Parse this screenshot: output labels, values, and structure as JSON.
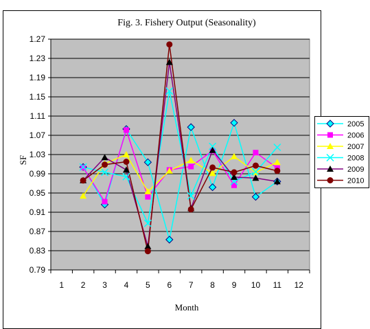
{
  "chart_data": {
    "type": "line",
    "title": "Fig. 3. Fishery Output (Seasonality)",
    "xlabel": "Month",
    "ylabel": "SF",
    "x": [
      1,
      2,
      3,
      4,
      5,
      6,
      7,
      8,
      9,
      10,
      11,
      12
    ],
    "xticks": [
      "1",
      "2",
      "3",
      "4",
      "5",
      "6",
      "7",
      "8",
      "9",
      "10",
      "11",
      "12"
    ],
    "ylim": [
      0.79,
      1.27
    ],
    "yticks": [
      "0.79",
      "0.83",
      "0.87",
      "0.91",
      "0.95",
      "0.99",
      "1.03",
      "1.07",
      "1.11",
      "1.15",
      "1.19",
      "1.23",
      "1.27"
    ],
    "grid": true,
    "plot_background": "#c0c0c0",
    "legend_position": "right",
    "series": [
      {
        "name": "2005",
        "color": "#00ffff",
        "marker": "diamond",
        "points": [
          [
            2,
            1.004
          ],
          [
            3,
            0.926
          ],
          [
            4,
            1.083
          ],
          [
            5,
            1.014
          ],
          [
            6,
            0.853
          ],
          [
            7,
            1.087
          ],
          [
            8,
            0.962
          ],
          [
            9,
            1.096
          ],
          [
            10,
            0.942
          ],
          [
            11,
            0.974
          ]
        ]
      },
      {
        "name": "2006",
        "color": "#ff00ff",
        "marker": "square",
        "points": [
          [
            2,
            1.003
          ],
          [
            3,
            0.932
          ],
          [
            4,
            1.081
          ],
          [
            5,
            0.942
          ],
          [
            6,
            0.998
          ],
          [
            7,
            1.005
          ],
          [
            8,
            1.038
          ],
          [
            9,
            0.966
          ],
          [
            10,
            1.034
          ],
          [
            11,
            1.002
          ]
        ]
      },
      {
        "name": "2007",
        "color": "#ffff00",
        "marker": "triangle",
        "points": [
          [
            2,
            0.944
          ],
          [
            3,
            1.011
          ],
          [
            4,
            1.03
          ],
          [
            5,
            0.953
          ],
          [
            6,
            0.996
          ],
          [
            7,
            1.018
          ],
          [
            8,
            0.991
          ],
          [
            9,
            1.026
          ],
          [
            10,
            0.993
          ],
          [
            11,
            1.014
          ]
        ]
      },
      {
        "name": "2008",
        "color": "#00ffff",
        "marker": "x",
        "points": [
          [
            2,
            1.004
          ],
          [
            3,
            0.993
          ],
          [
            4,
            0.984
          ],
          [
            5,
            0.887
          ],
          [
            6,
            1.162
          ],
          [
            7,
            0.944
          ],
          [
            8,
            1.047
          ],
          [
            9,
            0.974
          ],
          [
            10,
            0.994
          ],
          [
            11,
            1.045
          ]
        ]
      },
      {
        "name": "2009",
        "color": "#800080",
        "marker": "triangle",
        "points": [
          [
            2,
            0.976
          ],
          [
            3,
            1.024
          ],
          [
            4,
            0.998
          ],
          [
            5,
            0.839
          ],
          [
            6,
            1.222
          ],
          [
            7,
            0.918
          ],
          [
            8,
            1.039
          ],
          [
            9,
            0.983
          ],
          [
            10,
            0.981
          ],
          [
            11,
            0.974
          ]
        ]
      },
      {
        "name": "2010",
        "color": "#800000",
        "marker": "circle",
        "points": [
          [
            2,
            0.976
          ],
          [
            3,
            1.009
          ],
          [
            4,
            1.015
          ],
          [
            5,
            0.829
          ],
          [
            6,
            1.259
          ],
          [
            7,
            0.916
          ],
          [
            8,
            1.003
          ],
          [
            9,
            0.993
          ],
          [
            10,
            1.007
          ],
          [
            11,
            0.996
          ]
        ]
      }
    ]
  }
}
